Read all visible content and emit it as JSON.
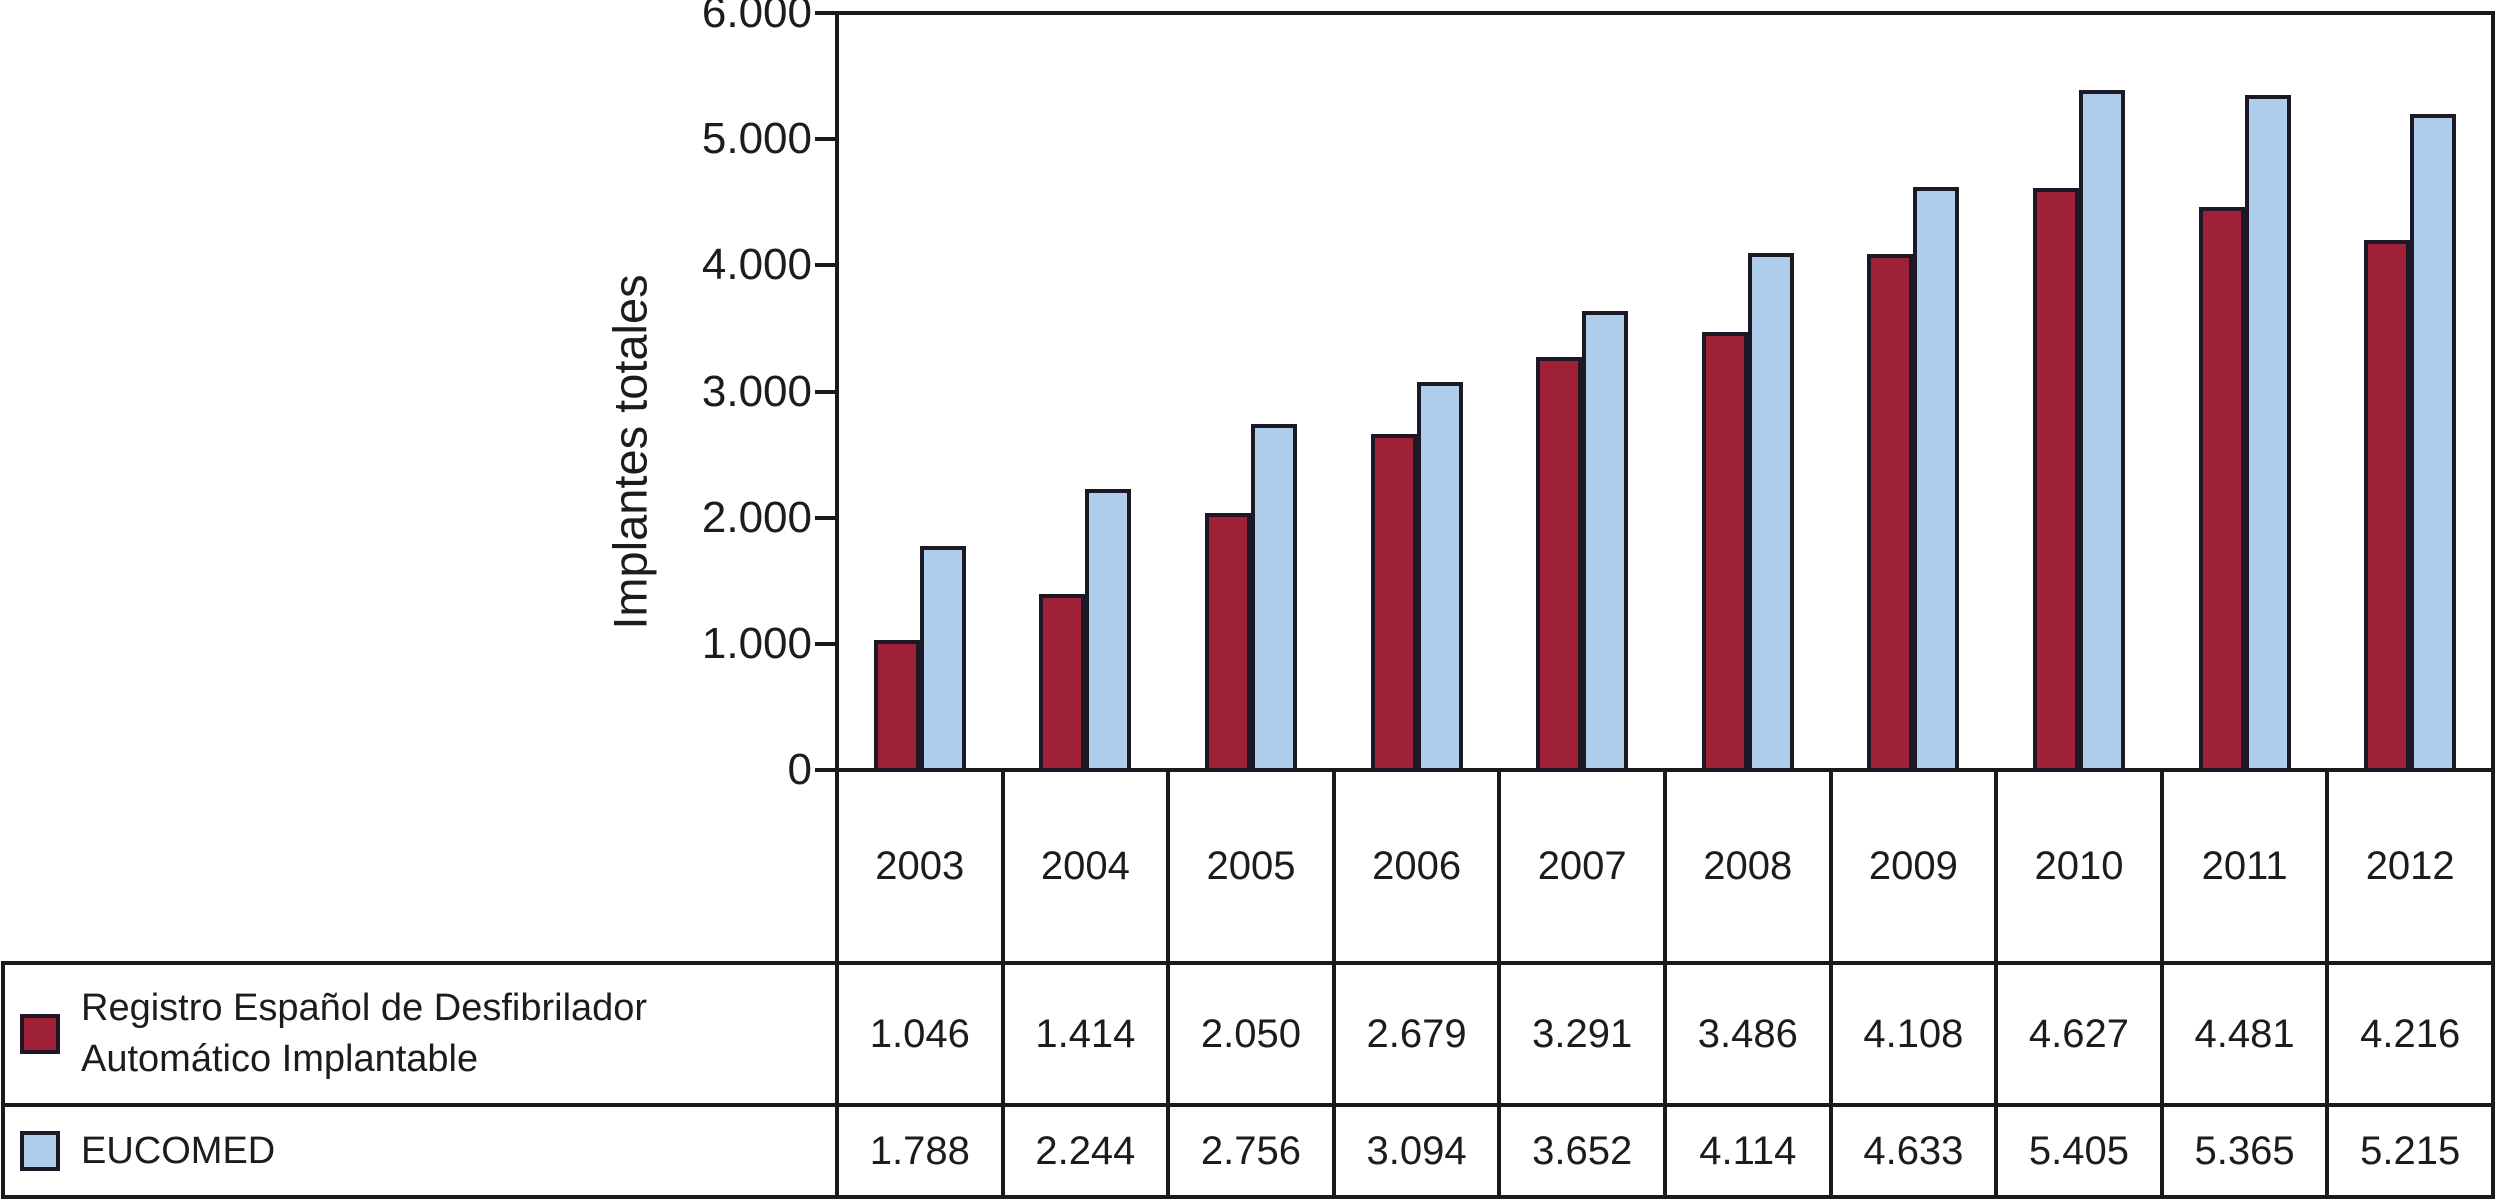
{
  "chart_data": {
    "type": "bar",
    "title": "",
    "xlabel": "",
    "ylabel": "Implantes totales",
    "ylim": [
      0,
      6000
    ],
    "ytick_values": [
      0,
      1000,
      2000,
      3000,
      4000,
      5000,
      6000
    ],
    "ytick_labels": [
      "0",
      "1.000",
      "2.000",
      "3.000",
      "4.000",
      "5.000",
      "6.000"
    ],
    "grid": false,
    "legend_position": "bottom-left-table",
    "categories": [
      "2003",
      "2004",
      "2005",
      "2006",
      "2007",
      "2008",
      "2009",
      "2010",
      "2011",
      "2012"
    ],
    "series": [
      {
        "name": "Registro Español de Desfibrilador Automático Implantable",
        "color": "#9e2137",
        "values": [
          1046,
          1414,
          2050,
          2679,
          3291,
          3486,
          4108,
          4627,
          4481,
          4216
        ],
        "value_labels": [
          "1.046",
          "1.414",
          "2.050",
          "2.679",
          "3.291",
          "3.486",
          "4.108",
          "4.627",
          "4.481",
          "4.216"
        ]
      },
      {
        "name": "EUCOMED",
        "color": "#aecdea",
        "values": [
          1788,
          2244,
          2756,
          3094,
          3652,
          4114,
          4633,
          5405,
          5365,
          5215
        ],
        "value_labels": [
          "1.788",
          "2.244",
          "2.756",
          "3.094",
          "3.652",
          "4.114",
          "4.633",
          "5.405",
          "5.365",
          "5.215"
        ]
      }
    ]
  },
  "colors": {
    "bar_outline": "#1e1826",
    "table_line": "#1a1a1a",
    "text": "#1c1c1c",
    "background": "#ffffff"
  }
}
